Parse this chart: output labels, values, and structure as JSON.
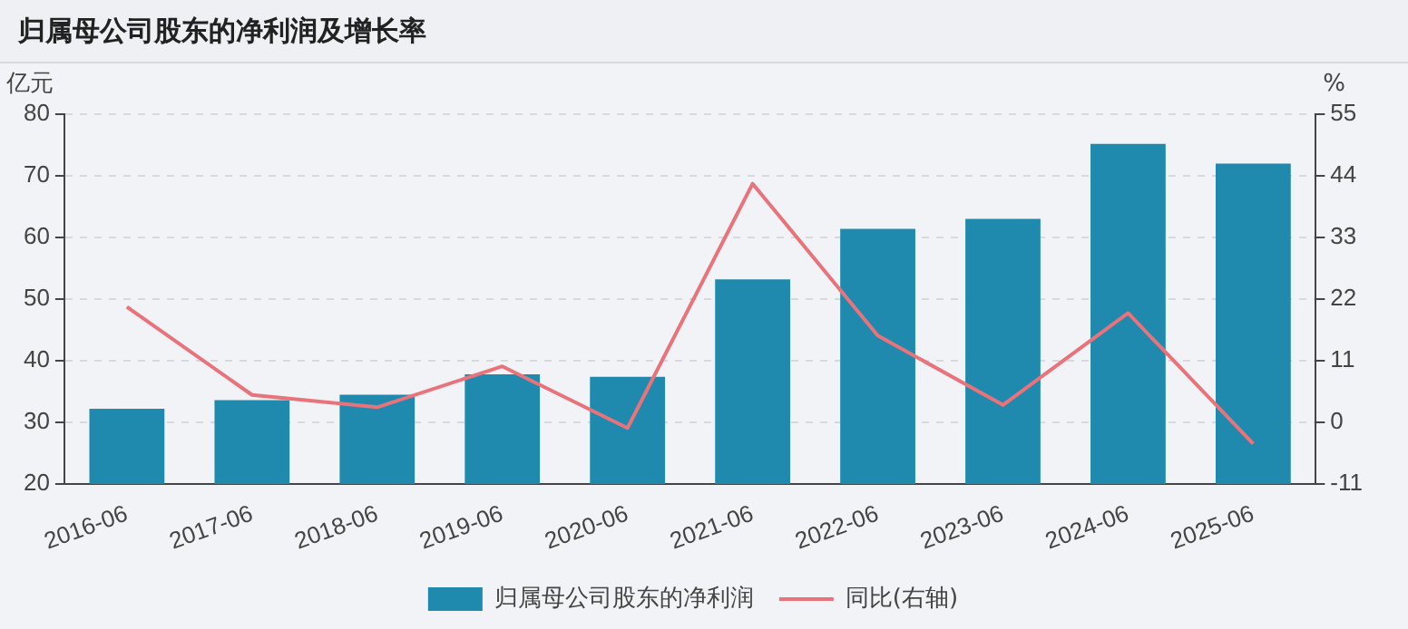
{
  "chart_data": {
    "type": "bar",
    "title": "归属母公司股东的净利润及增长率",
    "ylabel": "亿元",
    "y2label": "%",
    "categories": [
      "2016-06",
      "2017-06",
      "2018-06",
      "2019-06",
      "2020-06",
      "2021-06",
      "2022-06",
      "2023-06",
      "2024-06",
      "2025-06"
    ],
    "series": [
      {
        "name": "归属母公司股东的净利润",
        "color": "#1f8aad",
        "values": [
          32.2,
          33.6,
          34.5,
          37.8,
          37.4,
          53.2,
          61.4,
          63.0,
          75.2,
          72.0
        ]
      },
      {
        "name": "同比(右轴)",
        "type": "line",
        "axis": "y2",
        "color": "#e8737a",
        "values": [
          20.6,
          4.9,
          2.7,
          10.0,
          -1.0,
          42.6,
          15.5,
          3.1,
          19.5,
          -3.8
        ]
      }
    ],
    "ylim": [
      20,
      80
    ],
    "yticks": [
      20,
      30,
      40,
      50,
      60,
      70,
      80
    ],
    "y2lim": [
      -11,
      55
    ],
    "y2ticks": [
      -11,
      0,
      11,
      22,
      33,
      44,
      55
    ],
    "grid": "y",
    "legend": "bottom",
    "marker": "none",
    "line_style": "solid"
  }
}
